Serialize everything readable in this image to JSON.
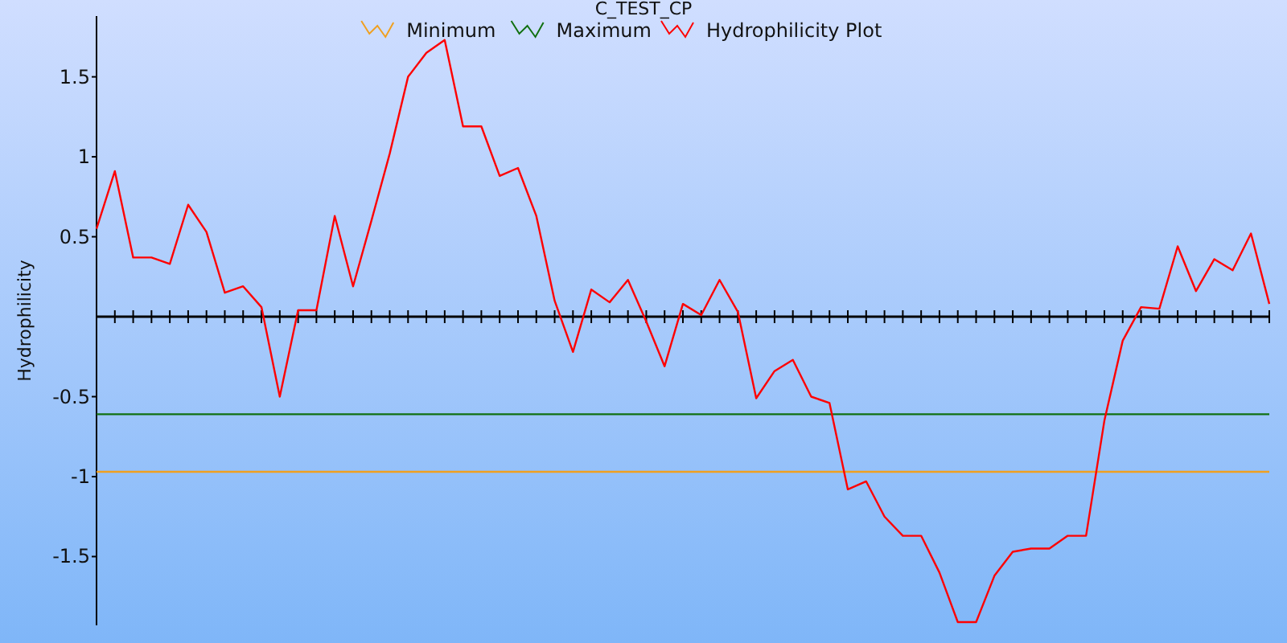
{
  "chart_data": {
    "type": "line",
    "title": "C_TEST_CP",
    "ylabel": "Hydrophilicity",
    "categories": [
      null,
      null,
      null,
      null,
      null,
      null,
      null,
      null,
      null,
      null,
      null,
      null,
      null,
      null,
      null,
      null,
      null,
      null,
      null,
      null,
      null,
      null,
      null,
      null,
      null,
      null,
      null,
      null,
      null,
      null,
      null,
      null,
      null,
      null,
      null,
      null,
      null,
      null,
      null,
      null,
      null,
      null,
      null,
      null,
      null,
      null,
      null,
      null,
      null,
      null,
      null,
      null,
      null,
      null,
      null,
      null,
      null,
      null,
      null,
      null,
      null,
      null,
      null,
      null,
      null
    ],
    "series": [
      {
        "name": "Minimum",
        "color": "#f0a020",
        "values": [
          -0.97,
          -0.97,
          -0.97,
          -0.97,
          -0.97,
          -0.97,
          -0.97,
          -0.97,
          -0.97,
          -0.97,
          -0.97,
          -0.97,
          -0.97,
          -0.97,
          -0.97,
          -0.97,
          -0.97,
          -0.97,
          -0.97,
          -0.97,
          -0.97,
          -0.97,
          -0.97,
          -0.97,
          -0.97,
          -0.97,
          -0.97,
          -0.97,
          -0.97,
          -0.97,
          -0.97,
          -0.97,
          -0.97,
          -0.97,
          -0.97,
          -0.97,
          -0.97,
          -0.97,
          -0.97,
          -0.97,
          -0.97,
          -0.97,
          -0.97,
          -0.97,
          -0.97,
          -0.97,
          -0.97,
          -0.97,
          -0.97,
          -0.97,
          -0.97,
          -0.97,
          -0.97,
          -0.97,
          -0.97,
          -0.97,
          -0.97,
          -0.97,
          -0.97,
          -0.97,
          -0.97,
          -0.97,
          -0.97,
          -0.97,
          -0.97
        ]
      },
      {
        "name": "Maximum",
        "color": "#107010",
        "values": [
          -0.61,
          -0.61,
          -0.61,
          -0.61,
          -0.61,
          -0.61,
          -0.61,
          -0.61,
          -0.61,
          -0.61,
          -0.61,
          -0.61,
          -0.61,
          -0.61,
          -0.61,
          -0.61,
          -0.61,
          -0.61,
          -0.61,
          -0.61,
          -0.61,
          -0.61,
          -0.61,
          -0.61,
          -0.61,
          -0.61,
          -0.61,
          -0.61,
          -0.61,
          -0.61,
          -0.61,
          -0.61,
          -0.61,
          -0.61,
          -0.61,
          -0.61,
          -0.61,
          -0.61,
          -0.61,
          -0.61,
          -0.61,
          -0.61,
          -0.61,
          -0.61,
          -0.61,
          -0.61,
          -0.61,
          -0.61,
          -0.61,
          -0.61,
          -0.61,
          -0.61,
          -0.61,
          -0.61,
          -0.61,
          -0.61,
          -0.61,
          -0.61,
          -0.61,
          -0.61,
          -0.61,
          -0.61,
          -0.61,
          -0.61,
          -0.61
        ]
      },
      {
        "name": "Hydrophilicity Plot",
        "color": "#ff0000",
        "values": [
          0.55,
          0.91,
          0.37,
          0.37,
          0.33,
          0.7,
          0.53,
          0.15,
          0.19,
          0.06,
          -0.5,
          0.04,
          0.04,
          0.63,
          0.19,
          0.6,
          1.02,
          1.5,
          1.65,
          1.73,
          1.19,
          1.19,
          0.88,
          0.93,
          0.63,
          0.1,
          -0.22,
          0.17,
          0.09,
          0.23,
          -0.03,
          -0.31,
          0.08,
          0.01,
          0.23,
          0.03,
          -0.51,
          -0.34,
          -0.27,
          -0.5,
          -0.54,
          -1.08,
          -1.03,
          -1.25,
          -1.37,
          -1.37,
          -1.6,
          -1.91,
          -1.91,
          -1.62,
          -1.47,
          -1.45,
          -1.45,
          -1.37,
          -1.37,
          -0.65,
          -0.15,
          0.06,
          0.05,
          0.44,
          0.16,
          0.36,
          0.29,
          0.52,
          0.08
        ]
      }
    ],
    "ylim": [
      -1.93,
      1.88
    ],
    "yticks": [
      -1.5,
      -1,
      -0.5,
      0.5,
      1,
      1.5
    ],
    "tick_labels": "y",
    "grid": false,
    "legend": "top",
    "marker": "none",
    "line_style": "solid"
  }
}
